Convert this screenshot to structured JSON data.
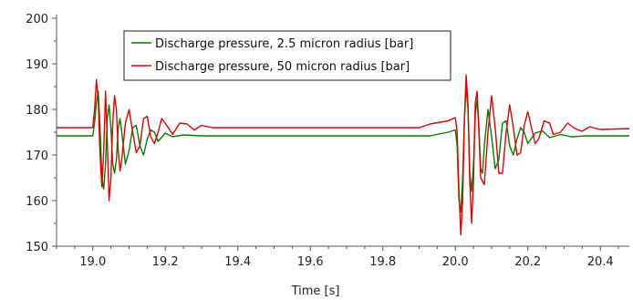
{
  "chart_data": {
    "type": "line",
    "title": "",
    "xlabel": "Time [s]",
    "ylabel": "",
    "xlim": [
      18.9,
      20.48
    ],
    "ylim": [
      150,
      200
    ],
    "x_ticks": [
      19.0,
      19.2,
      19.4,
      19.6,
      19.8,
      20.0,
      20.2,
      20.4
    ],
    "x_tick_labels": [
      "19.0",
      "19.2",
      "19.4",
      "19.6",
      "19.8",
      "20.0",
      "20.2",
      "20.4"
    ],
    "y_ticks": [
      150,
      160,
      170,
      180,
      190,
      200
    ],
    "y_tick_labels": [
      "150",
      "160",
      "170",
      "180",
      "190",
      "200"
    ],
    "grid": false,
    "legend_position": "top-left",
    "series": [
      {
        "name": "Discharge pressure, 2.5 micron radius [bar]",
        "color": "#008000",
        "points": [
          [
            18.9,
            174.2
          ],
          [
            19.0,
            174.2
          ],
          [
            19.005,
            177.0
          ],
          [
            19.01,
            181.5
          ],
          [
            19.015,
            184.0
          ],
          [
            19.02,
            176.0
          ],
          [
            19.025,
            165.0
          ],
          [
            19.03,
            162.5
          ],
          [
            19.035,
            168.0
          ],
          [
            19.04,
            178.0
          ],
          [
            19.045,
            181.0
          ],
          [
            19.05,
            176.0
          ],
          [
            19.055,
            168.0
          ],
          [
            19.06,
            166.0
          ],
          [
            19.065,
            169.0
          ],
          [
            19.07,
            176.0
          ],
          [
            19.075,
            178.0
          ],
          [
            19.08,
            175.0
          ],
          [
            19.09,
            168.0
          ],
          [
            19.1,
            171.0
          ],
          [
            19.11,
            176.0
          ],
          [
            19.12,
            176.5
          ],
          [
            19.13,
            172.0
          ],
          [
            19.14,
            170.0
          ],
          [
            19.15,
            173.5
          ],
          [
            19.16,
            175.5
          ],
          [
            19.17,
            175.0
          ],
          [
            19.18,
            173.0
          ],
          [
            19.2,
            174.8
          ],
          [
            19.22,
            174.0
          ],
          [
            19.25,
            174.4
          ],
          [
            19.3,
            174.2
          ],
          [
            19.93,
            174.2
          ],
          [
            19.98,
            175.0
          ],
          [
            20.0,
            175.5
          ],
          [
            20.005,
            172.0
          ],
          [
            20.01,
            160.0
          ],
          [
            20.015,
            157.5
          ],
          [
            20.02,
            165.0
          ],
          [
            20.025,
            178.0
          ],
          [
            20.03,
            185.0
          ],
          [
            20.035,
            180.0
          ],
          [
            20.04,
            166.0
          ],
          [
            20.045,
            162.0
          ],
          [
            20.05,
            168.0
          ],
          [
            20.055,
            179.0
          ],
          [
            20.06,
            182.0
          ],
          [
            20.065,
            176.0
          ],
          [
            20.07,
            167.0
          ],
          [
            20.075,
            166.0
          ],
          [
            20.08,
            172.0
          ],
          [
            20.09,
            180.0
          ],
          [
            20.1,
            174.0
          ],
          [
            20.11,
            167.0
          ],
          [
            20.12,
            169.0
          ],
          [
            20.13,
            177.0
          ],
          [
            20.14,
            177.5
          ],
          [
            20.15,
            172.0
          ],
          [
            20.16,
            170.0
          ],
          [
            20.17,
            173.5
          ],
          [
            20.18,
            176.0
          ],
          [
            20.19,
            175.0
          ],
          [
            20.2,
            172.5
          ],
          [
            20.22,
            174.8
          ],
          [
            20.24,
            175.3
          ],
          [
            20.26,
            173.8
          ],
          [
            20.29,
            174.5
          ],
          [
            20.32,
            174.0
          ],
          [
            20.36,
            174.2
          ],
          [
            20.48,
            174.2
          ]
        ]
      },
      {
        "name": "Discharge pressure, 50 micron radius [bar]",
        "color": "#e00000",
        "points": [
          [
            18.9,
            176.0
          ],
          [
            19.0,
            176.0
          ],
          [
            19.005,
            180.0
          ],
          [
            19.01,
            186.5
          ],
          [
            19.015,
            182.0
          ],
          [
            19.02,
            170.0
          ],
          [
            19.025,
            163.0
          ],
          [
            19.03,
            171.0
          ],
          [
            19.035,
            184.0
          ],
          [
            19.04,
            173.0
          ],
          [
            19.045,
            160.0
          ],
          [
            19.05,
            165.0
          ],
          [
            19.055,
            177.0
          ],
          [
            19.06,
            183.0
          ],
          [
            19.065,
            180.0
          ],
          [
            19.07,
            171.0
          ],
          [
            19.075,
            166.5
          ],
          [
            19.08,
            169.0
          ],
          [
            19.09,
            177.0
          ],
          [
            19.1,
            180.0
          ],
          [
            19.11,
            175.0
          ],
          [
            19.12,
            170.5
          ],
          [
            19.13,
            172.0
          ],
          [
            19.14,
            178.0
          ],
          [
            19.15,
            178.5
          ],
          [
            19.16,
            174.0
          ],
          [
            19.17,
            172.5
          ],
          [
            19.18,
            175.0
          ],
          [
            19.19,
            178.0
          ],
          [
            19.2,
            177.0
          ],
          [
            19.22,
            174.5
          ],
          [
            19.24,
            177.0
          ],
          [
            19.26,
            176.8
          ],
          [
            19.28,
            175.5
          ],
          [
            19.3,
            176.5
          ],
          [
            19.33,
            176.0
          ],
          [
            19.9,
            176.0
          ],
          [
            19.93,
            176.8
          ],
          [
            19.98,
            177.5
          ],
          [
            20.0,
            178.2
          ],
          [
            20.005,
            175.0
          ],
          [
            20.01,
            162.0
          ],
          [
            20.015,
            152.5
          ],
          [
            20.02,
            160.0
          ],
          [
            20.025,
            178.0
          ],
          [
            20.03,
            187.5
          ],
          [
            20.035,
            181.0
          ],
          [
            20.04,
            164.0
          ],
          [
            20.045,
            155.0
          ],
          [
            20.05,
            164.0
          ],
          [
            20.055,
            181.5
          ],
          [
            20.06,
            184.0
          ],
          [
            20.065,
            175.0
          ],
          [
            20.07,
            165.0
          ],
          [
            20.08,
            163.5
          ],
          [
            20.09,
            175.0
          ],
          [
            20.1,
            183.0
          ],
          [
            20.11,
            176.0
          ],
          [
            20.12,
            166.0
          ],
          [
            20.13,
            166.0
          ],
          [
            20.14,
            175.0
          ],
          [
            20.15,
            181.0
          ],
          [
            20.16,
            176.0
          ],
          [
            20.17,
            170.0
          ],
          [
            20.18,
            170.5
          ],
          [
            20.19,
            176.5
          ],
          [
            20.2,
            179.5
          ],
          [
            20.21,
            176.0
          ],
          [
            20.22,
            172.5
          ],
          [
            20.23,
            173.5
          ],
          [
            20.245,
            177.5
          ],
          [
            20.26,
            177.0
          ],
          [
            20.27,
            174.5
          ],
          [
            20.29,
            175.0
          ],
          [
            20.31,
            177.0
          ],
          [
            20.33,
            175.8
          ],
          [
            20.35,
            175.2
          ],
          [
            20.37,
            176.2
          ],
          [
            20.4,
            175.6
          ],
          [
            20.48,
            175.8
          ]
        ]
      }
    ]
  }
}
